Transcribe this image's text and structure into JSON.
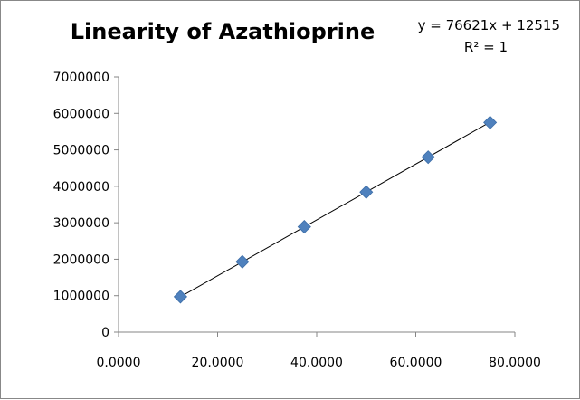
{
  "chart_data": {
    "type": "scatter",
    "title": "Linearity of Azathioprine",
    "xlabel": "",
    "ylabel": "",
    "xlim": [
      0,
      80
    ],
    "ylim": [
      0,
      7000000
    ],
    "x_ticks": [
      0,
      20,
      40,
      60,
      80
    ],
    "x_tick_labels": [
      "0.0000",
      "20.0000",
      "40.0000",
      "60.0000",
      "80.0000"
    ],
    "y_ticks": [
      0,
      1000000,
      2000000,
      3000000,
      4000000,
      5000000,
      6000000,
      7000000
    ],
    "y_tick_labels": [
      "0",
      "1000000",
      "2000000",
      "3000000",
      "4000000",
      "5000000",
      "6000000",
      "7000000"
    ],
    "grid": false,
    "legend": "none",
    "series": [
      {
        "x": [
          12.5,
          25.0,
          37.5,
          50.0,
          62.5,
          75.0
        ],
        "y": [
          970000,
          1930000,
          2890000,
          3840000,
          4800000,
          5750000
        ],
        "marker": "diamond",
        "color": "#4f81bd"
      }
    ],
    "trendline": {
      "slope": 76621,
      "intercept": 12515,
      "x_range": [
        12.5,
        75.0
      ],
      "color": "#000000"
    },
    "annotations": {
      "equation": "y = 76621x + 12515",
      "r_squared": "R² = 1"
    }
  }
}
